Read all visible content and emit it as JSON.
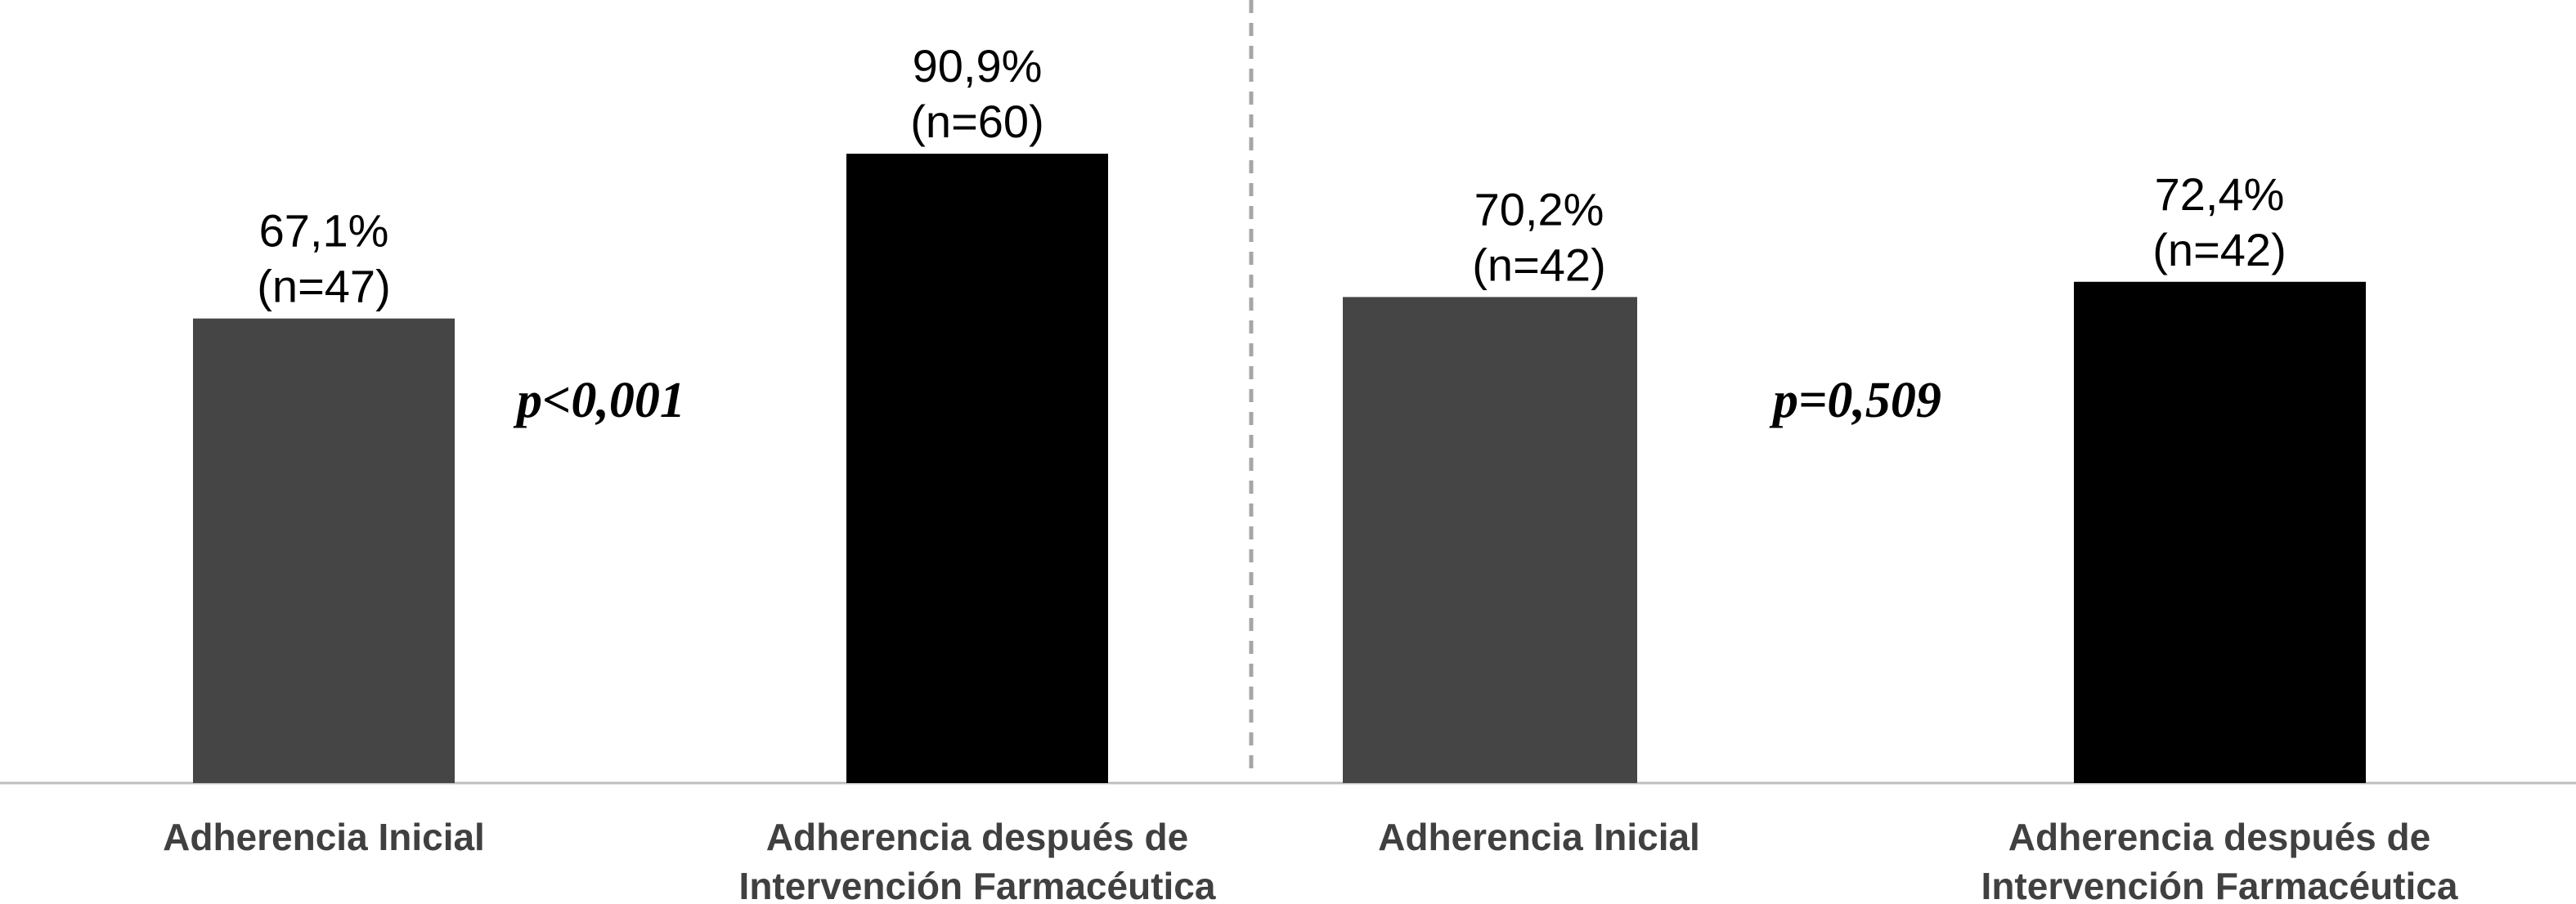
{
  "colors": {
    "inicial": "#454545",
    "despues": "#000000",
    "axis": "#bfbfbf",
    "divider": "#a6a6a6",
    "category_text": "#404040"
  },
  "chart_data": [
    {
      "type": "bar",
      "categories": [
        "Adherencia Inicial",
        "Adherencia después de Intervención Farmacéutica"
      ],
      "category_lines": [
        [
          "Adherencia Inicial"
        ],
        [
          "Adherencia después de",
          "Intervención Farmacéutica"
        ]
      ],
      "values": [
        67.1,
        90.9
      ],
      "value_labels": [
        "67,1%",
        "90,9%"
      ],
      "n_labels": [
        "(n=47)",
        "(n=60)"
      ],
      "bar_colors": [
        "#454545",
        "#000000"
      ],
      "p_value": "p<0,001",
      "ylim": [
        0,
        100
      ],
      "grid": false
    },
    {
      "type": "bar",
      "categories": [
        "Adherencia Inicial",
        "Adherencia después de Intervención Farmacéutica"
      ],
      "category_lines": [
        [
          "Adherencia Inicial"
        ],
        [
          "Adherencia después de",
          "Intervención Farmacéutica"
        ]
      ],
      "values": [
        70.2,
        72.4
      ],
      "value_labels": [
        "70,2%",
        "72,4%"
      ],
      "n_labels": [
        "(n=42)",
        "(n=42)"
      ],
      "bar_colors": [
        "#454545",
        "#000000"
      ],
      "p_value": "p=0,509",
      "ylim": [
        0,
        100
      ],
      "grid": false
    }
  ]
}
